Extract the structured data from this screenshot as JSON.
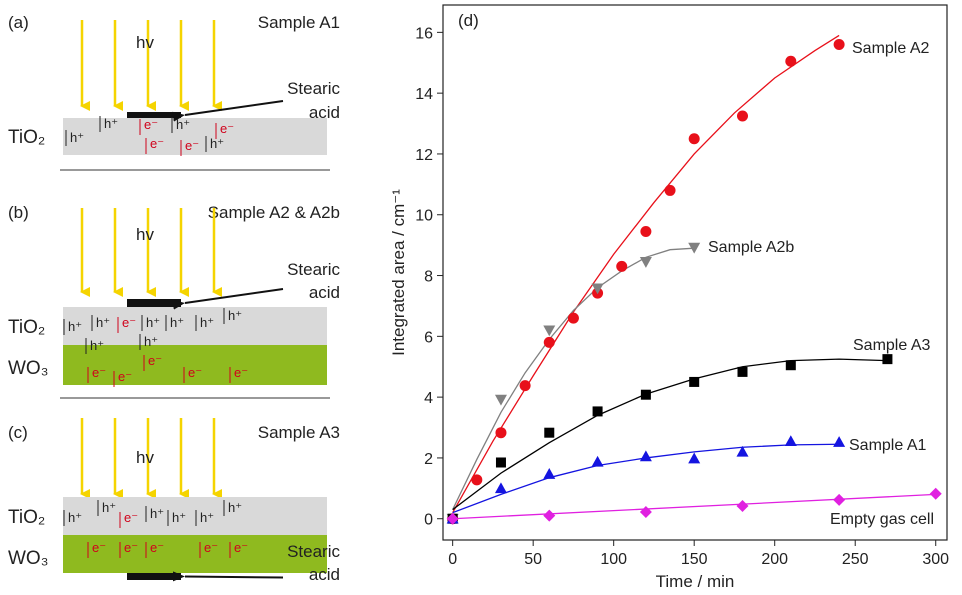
{
  "diagrams": [
    {
      "label": "(a)",
      "sample": "Sample A1",
      "light": "hv",
      "acid": [
        "Stearic",
        "acid"
      ],
      "layers": [
        "TiO₂"
      ],
      "charges": [
        "h⁺",
        "h⁺",
        "e⁻",
        "h⁺",
        "e⁻",
        "e⁻",
        "h⁺",
        "e⁻"
      ]
    },
    {
      "label": "(b)",
      "sample": "Sample A2 & A2b",
      "light": "hv",
      "acid": [
        "Stearic",
        "acid"
      ],
      "layers": [
        "TiO₂",
        "WO₃"
      ],
      "charges": [
        "h⁺",
        "h⁺",
        "e⁻",
        "h⁺",
        "h⁺",
        "h⁺",
        "h⁺",
        "h⁺",
        "h⁺",
        "e⁻",
        "e⁻",
        "e⁻",
        "e⁻",
        "e⁻"
      ]
    },
    {
      "label": "(c)",
      "sample": "Sample A3",
      "light": "hv",
      "acid": [
        "Stearic",
        "acid"
      ],
      "layers": [
        "TiO₂",
        "WO₃"
      ],
      "charges": [
        "h⁺",
        "h⁺",
        "e⁻",
        "h⁺",
        "h⁺",
        "h⁺",
        "h⁺",
        "e⁻",
        "e⁻",
        "e⁻",
        "e⁻",
        "e⁻"
      ]
    }
  ],
  "chart_data": {
    "type": "scatter",
    "panel_label": "(d)",
    "xlabel": "Time / min",
    "ylabel": "Integrated area / cm⁻¹",
    "xlim": [
      -6,
      307
    ],
    "ylim": [
      -0.7,
      16.9
    ],
    "xticks": [
      0,
      50,
      100,
      150,
      200,
      250,
      300
    ],
    "yticks": [
      0,
      2,
      4,
      6,
      8,
      10,
      12,
      14,
      16
    ],
    "series": [
      {
        "name": "Sample A2",
        "color": "#e8101a",
        "marker": "circle",
        "x": [
          0,
          15,
          30,
          45,
          60,
          75,
          90,
          105,
          120,
          135,
          150,
          180,
          210,
          240
        ],
        "values": [
          0,
          1.28,
          2.83,
          4.38,
          5.8,
          6.6,
          7.42,
          8.3,
          9.45,
          10.8,
          12.5,
          13.25,
          15.05,
          15.6
        ],
        "fit_x": [
          0,
          25,
          50,
          75,
          100,
          125,
          150,
          175,
          200,
          225,
          240
        ],
        "fit_values": [
          0.2,
          2.55,
          4.7,
          6.8,
          8.7,
          10.4,
          12.0,
          13.35,
          14.5,
          15.4,
          15.9
        ]
      },
      {
        "name": "Sample A2b",
        "color": "#808080",
        "marker": "triangle-down",
        "x": [
          0,
          30,
          60,
          90,
          120,
          150
        ],
        "values": [
          0,
          3.92,
          6.2,
          7.58,
          8.45,
          8.92
        ],
        "fit_x": [
          0,
          15,
          30,
          45,
          60,
          75,
          90,
          105,
          120,
          135,
          150
        ],
        "fit_values": [
          0.3,
          1.95,
          3.5,
          4.8,
          5.9,
          6.85,
          7.6,
          8.15,
          8.6,
          8.85,
          8.9
        ]
      },
      {
        "name": "Sample A3",
        "color": "#000000",
        "marker": "square",
        "x": [
          0,
          30,
          60,
          90,
          120,
          150,
          180,
          210,
          270
        ],
        "values": [
          0,
          1.85,
          2.83,
          3.53,
          4.08,
          4.5,
          4.83,
          5.05,
          5.25
        ],
        "fit_x": [
          0,
          30,
          60,
          90,
          120,
          150,
          180,
          210,
          240,
          270
        ],
        "fit_values": [
          0.3,
          1.5,
          2.5,
          3.4,
          4.1,
          4.6,
          5.0,
          5.2,
          5.25,
          5.2
        ]
      },
      {
        "name": "Sample A1",
        "color": "#1414e0",
        "marker": "triangle-up",
        "x": [
          0,
          30,
          60,
          90,
          120,
          150,
          180,
          210,
          240
        ],
        "values": [
          0,
          1.0,
          1.47,
          1.87,
          2.05,
          1.98,
          2.2,
          2.55,
          2.52
        ],
        "fit_x": [
          0,
          30,
          60,
          90,
          120,
          150,
          180,
          210,
          240
        ],
        "fit_values": [
          0.2,
          0.8,
          1.35,
          1.75,
          2.0,
          2.2,
          2.35,
          2.43,
          2.45
        ]
      },
      {
        "name": "Empty gas cell",
        "color": "#e020e0",
        "marker": "diamond",
        "x": [
          0,
          60,
          120,
          180,
          240,
          300
        ],
        "values": [
          0,
          0.1,
          0.22,
          0.42,
          0.62,
          0.82
        ],
        "fit_x": [
          0,
          300
        ],
        "fit_values": [
          0,
          0.8
        ]
      }
    ]
  }
}
